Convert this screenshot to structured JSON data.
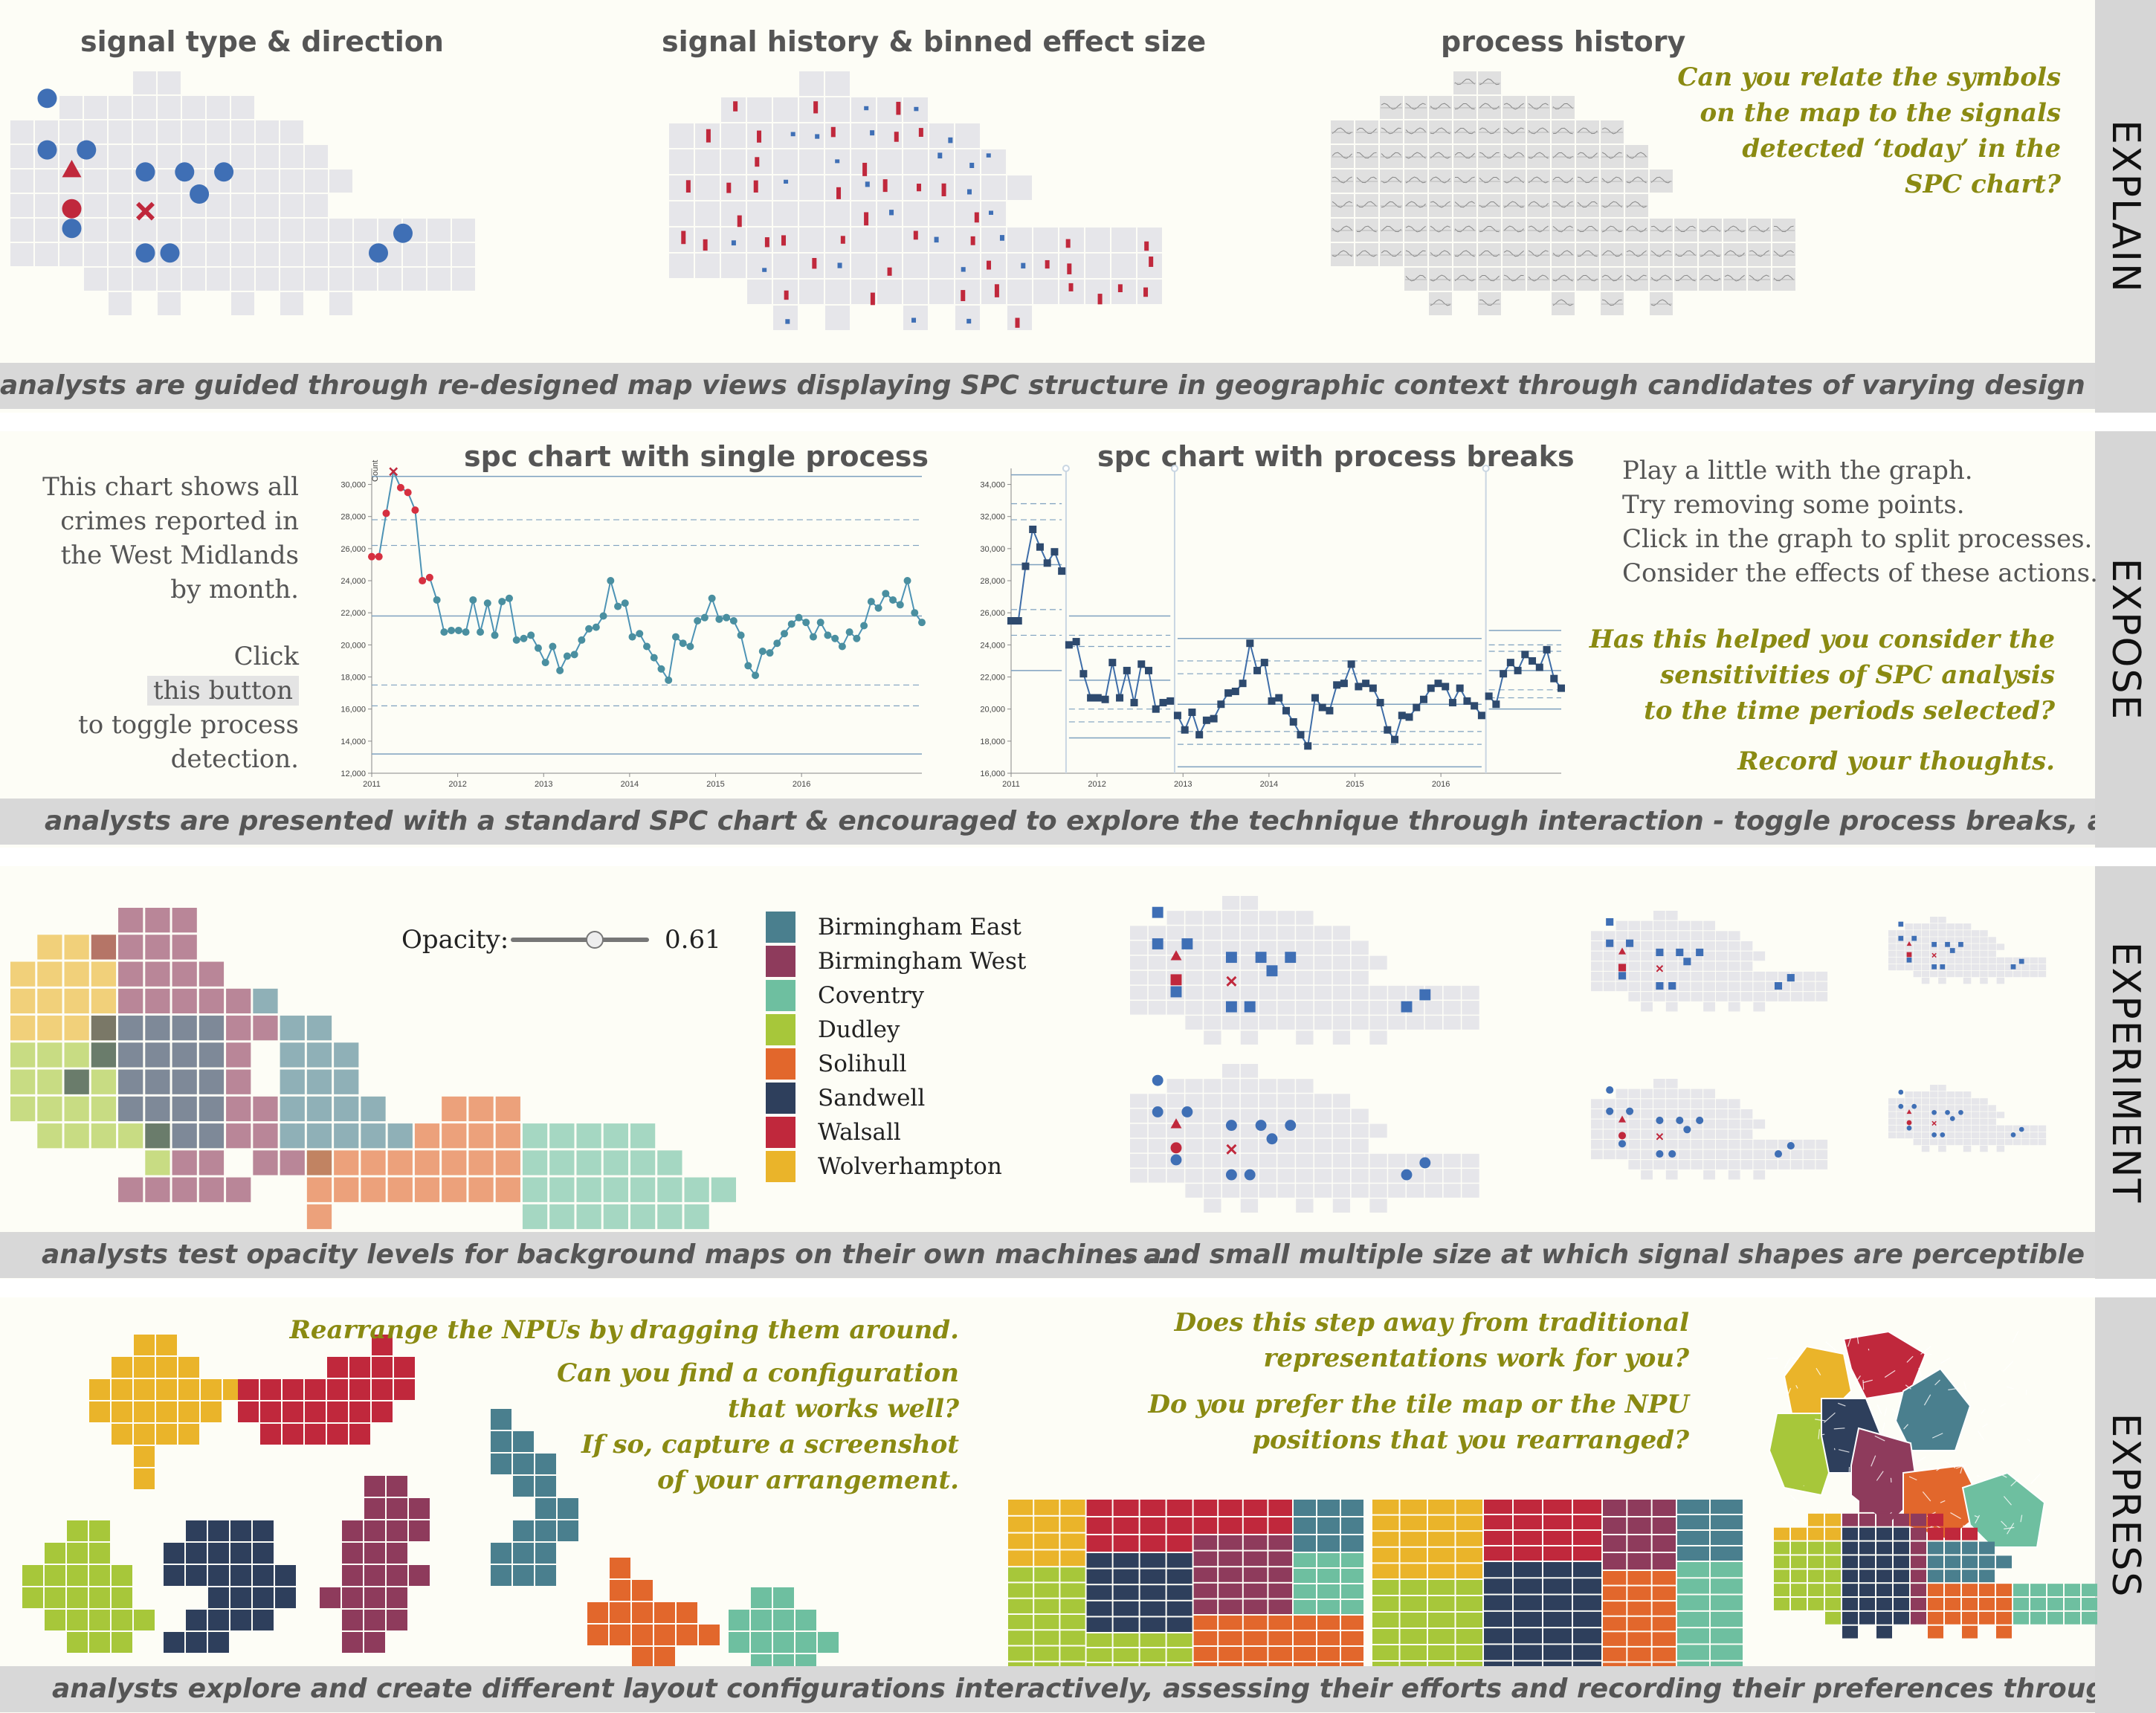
{
  "stages": [
    "EXPLAIN",
    "EXPOSE",
    "EXPERIMENT",
    "EXPRESS"
  ],
  "explain": {
    "headings": [
      "signal type & direction",
      "signal history & binned effect size",
      "process history"
    ],
    "question": [
      "Can you relate the symbols",
      "on the map  to the signals",
      "detected ‘today’ in the",
      "SPC chart?"
    ],
    "caption": "analysts are guided through re-designed map views displaying SPC structure in geographic context through candidates of varying design complexity & info density"
  },
  "expose": {
    "intro": [
      "This chart shows all",
      "crimes reported in",
      "the West Midlands",
      "by month."
    ],
    "click": "Click",
    "button": "this button",
    "toggle": [
      "to toggle process",
      "detection."
    ],
    "chart1_title": "spc chart with single process",
    "chart2_title": "spc chart with process breaks",
    "axis_label": "Count",
    "instructions": [
      "Play a little with the graph.",
      "Try removing some points.",
      "Click in the graph to split processes.",
      "Consider the effects of these actions."
    ],
    "question": [
      "Has this helped you consider the",
      "sensitivities of SPC analysis",
      "to the time periods selected?"
    ],
    "record": "Record your thoughts.",
    "caption": "analysts are presented with a standard SPC chart & encouraged to explore the technique through interaction - toggle process breaks, add/remove data points"
  },
  "experiment": {
    "opacity_label": "Opacity:",
    "opacity_value": "0.61",
    "opacity_level": 0.61,
    "legend": [
      {
        "name": "Birmingham East",
        "color": "#4a7f8e"
      },
      {
        "name": "Birmingham West",
        "color": "#8e3b5c"
      },
      {
        "name": "Coventry",
        "color": "#6ebfa0"
      },
      {
        "name": "Dudley",
        "color": "#a7c73a"
      },
      {
        "name": "Solihull",
        "color": "#e2672c"
      },
      {
        "name": "Sandwell",
        "color": "#2e3f5c"
      },
      {
        "name": "Walsall",
        "color": "#c0283c"
      },
      {
        "name": "Wolverhampton",
        "color": "#eab42a"
      }
    ],
    "caption_left": "analysts test opacity levels for background maps on their own machines ...",
    "caption_right": "... and small multiple size at which signal shapes are perceptible"
  },
  "express": {
    "left_text": [
      "Rearrange the NPUs by dragging them around.",
      "Can you find a configuration",
      "that works well?",
      "If so, capture a screenshot",
      "of your arrangement."
    ],
    "right_text": [
      "Does this step away from traditional",
      "representations work for you?",
      "Do you prefer the  tile map or the NPU",
      "positions that you rearranged?"
    ],
    "caption": "analysts explore and create different layout configurations interactively, assessing their efforts and recording their preferences through a screen dump"
  },
  "chart_data": [
    {
      "type": "line",
      "title": "spc chart with single process",
      "ylabel": "Count",
      "x_ticks": [
        "2011",
        "2012",
        "2013",
        "2014",
        "2015",
        "2016"
      ],
      "y_ticks": [
        "12,000",
        "14,000",
        "16,000",
        "18,000",
        "20,000",
        "22,000",
        "24,000",
        "26,000",
        "28,000",
        "30,000"
      ],
      "ylim": [
        12000,
        31000
      ],
      "mean": 21800,
      "upper_limit": 30500,
      "lower_limit": 13200,
      "warning_lines": [
        27800,
        26200,
        17500,
        16200
      ],
      "values": [
        25500,
        25500,
        28200,
        30800,
        29800,
        29500,
        28400,
        24000,
        24200,
        22800,
        20800,
        20900,
        20900,
        20800,
        22800,
        20800,
        22600,
        20600,
        22700,
        22900,
        20300,
        20400,
        20600,
        19800,
        18900,
        19900,
        18400,
        19300,
        19400,
        20300,
        21000,
        21100,
        21800,
        24000,
        22400,
        22600,
        20500,
        20700,
        19900,
        19200,
        18500,
        17800,
        20500,
        20100,
        19900,
        21500,
        21700,
        22900,
        21600,
        21700,
        21500,
        20600,
        18700,
        18100,
        19600,
        19500,
        20100,
        20700,
        21300,
        21700,
        21400,
        20500,
        21400,
        20600,
        20400,
        19900,
        20800,
        20400,
        21200,
        22700,
        22300,
        23200,
        22800,
        22500,
        24000,
        22000,
        21400
      ]
    },
    {
      "type": "line",
      "title": "spc chart with process breaks",
      "x_ticks": [
        "2011",
        "2012",
        "2013",
        "2014",
        "2015",
        "2016"
      ],
      "y_ticks": [
        "16,000",
        "18,000",
        "20,000",
        "22,000",
        "24,000",
        "26,000",
        "28,000",
        "30,000",
        "32,000",
        "34,000"
      ],
      "ylim": [
        16000,
        35000
      ],
      "values": [
        25500,
        25500,
        28900,
        31200,
        30100,
        29100,
        29800,
        28600,
        24000,
        24200,
        22200,
        20700,
        20700,
        20600,
        22900,
        20700,
        22400,
        20400,
        22800,
        22400,
        20000,
        20400,
        20500,
        19600,
        18700,
        19800,
        18400,
        19300,
        19400,
        20300,
        21000,
        21100,
        21600,
        24100,
        22400,
        22900,
        20500,
        20700,
        19900,
        19200,
        18400,
        17700,
        20700,
        20100,
        19900,
        21500,
        21600,
        22800,
        21400,
        21600,
        21300,
        20400,
        18700,
        18100,
        19600,
        19500,
        20100,
        20600,
        21300,
        21600,
        21400,
        20400,
        21300,
        20500,
        20200,
        19600,
        20800,
        20300,
        22200,
        22900,
        22400,
        23400,
        23000,
        22600,
        23700,
        21900,
        21300
      ]
    }
  ]
}
